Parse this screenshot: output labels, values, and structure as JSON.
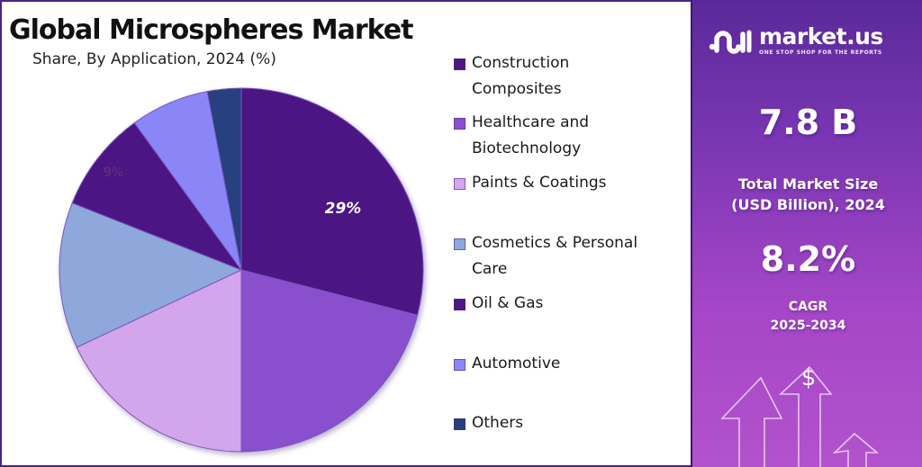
{
  "header": {
    "title": "Global Microspheres Market",
    "subtitle": "Share, By Application, 2024 (%)"
  },
  "chart_data": {
    "type": "pie",
    "title": "Global Microspheres Market",
    "subtitle": "Share, By Application, 2024 (%)",
    "categories": [
      "Construction Composites",
      "Healthcare and Biotechnology",
      "Paints & Coatings",
      "Cosmetics & Personal Care",
      "Oil & Gas",
      "Automotive",
      "Others"
    ],
    "values": [
      29,
      21,
      18,
      13,
      9,
      7,
      3
    ],
    "colors": [
      "#4b1783",
      "#8a4fcc",
      "#d3a6ec",
      "#8ea8dc",
      "#4b1783",
      "#8b86f8",
      "#273f80"
    ],
    "data_labels": [
      {
        "category": "Construction Composites",
        "text": "29%"
      },
      {
        "category": "Oil & Gas",
        "text": "9%"
      }
    ],
    "start_angle_deg": 0,
    "direction": "clockwise",
    "legend_position": "right"
  },
  "labels": {
    "slice_construction": "29%",
    "slice_oil_gas": "9%"
  },
  "legend": {
    "items": [
      {
        "label": "Construction Composites",
        "color": "#4b1783"
      },
      {
        "label": "Healthcare and Biotechnology",
        "color": "#8a4fcc"
      },
      {
        "label": "Paints & Coatings",
        "color": "#d3a6ec"
      },
      {
        "label": "Cosmetics & Personal Care",
        "color": "#8ea8dc"
      },
      {
        "label": "Oil & Gas",
        "color": "#4b1783"
      },
      {
        "label": "Automotive",
        "color": "#8b86f8"
      },
      {
        "label": "Others",
        "color": "#273f80"
      }
    ]
  },
  "sidebar": {
    "brand_name": "market.us",
    "brand_tagline": "ONE STOP SHOP FOR THE REPORTS",
    "market_size_value": "7.8 B",
    "market_size_label_line1": "Total Market Size",
    "market_size_label_line2": "(USD Billion), 2024",
    "cagr_value": "8.2%",
    "cagr_label_line1": "CAGR",
    "cagr_label_line2": "2025-2034",
    "dollar_symbol": "$"
  },
  "colors": {
    "accent_dark": "#4b2588",
    "panel_top": "#5a2999",
    "panel_bottom": "#b252cc"
  }
}
